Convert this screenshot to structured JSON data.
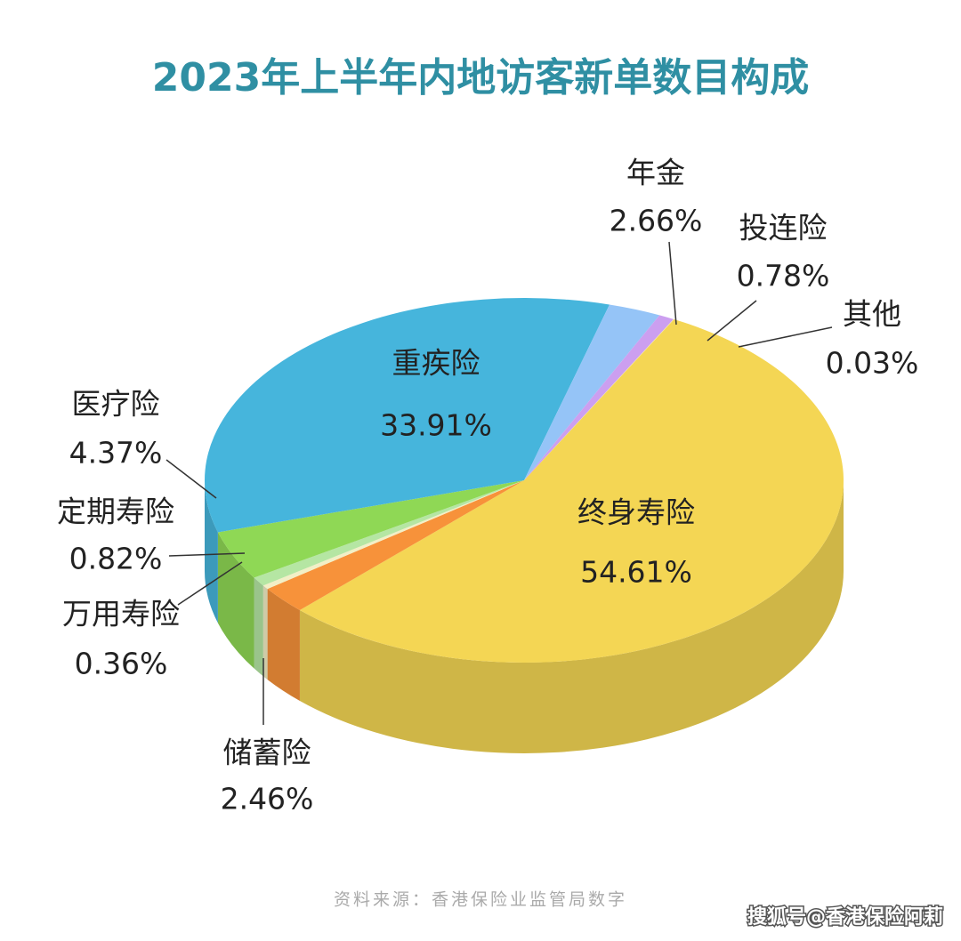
{
  "chart_data": {
    "type": "pie",
    "title": "2023年上半年内地访客新单数目构成",
    "source": "资料来源：香港保险业监管局数字",
    "watermark": "搜狐号@香港保险阿莉",
    "categories": [
      "终身寿险",
      "储蓄险",
      "万用寿险",
      "定期寿险",
      "医疗险",
      "重疾险",
      "年金",
      "投连险",
      "其他"
    ],
    "values": [
      54.61,
      2.46,
      0.36,
      0.82,
      4.37,
      33.91,
      2.66,
      0.78,
      0.03
    ],
    "value_labels": [
      "54.61%",
      "2.46%",
      "0.36%",
      "0.82%",
      "4.37%",
      "33.91%",
      "2.66%",
      "0.78%",
      "0.03%"
    ],
    "colors": [
      "#f4d654",
      "#f7923a",
      "#f2efc6",
      "#b5e6a3",
      "#8fd855",
      "#46b5dc",
      "#95c4f7",
      "#cc9ff0",
      "#f4e6a0"
    ]
  }
}
